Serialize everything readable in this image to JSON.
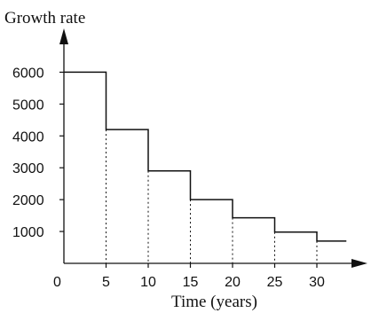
{
  "chart_data": {
    "type": "line",
    "step": true,
    "ylabel": "Growth rate",
    "xlabel": "Time (years)",
    "origin_label": "0",
    "x_ticks": [
      5,
      10,
      15,
      20,
      25,
      30
    ],
    "y_ticks": [
      1000,
      2000,
      3000,
      4000,
      5000,
      6000
    ],
    "x_tick_labels": [
      "5",
      "10",
      "15",
      "20",
      "25",
      "30"
    ],
    "y_tick_labels": [
      "1000",
      "2000",
      "3000",
      "4000",
      "5000",
      "6000"
    ],
    "xlim": [
      0,
      35
    ],
    "ylim": [
      0,
      6000
    ],
    "series": [
      {
        "x": [
          [
            0,
            5
          ],
          [
            5,
            10
          ],
          [
            10,
            15
          ],
          [
            15,
            20
          ],
          [
            20,
            25
          ],
          [
            25,
            30
          ],
          [
            30,
            33.5
          ]
        ],
        "values": [
          6000,
          4200,
          2900,
          2000,
          1430,
          980,
          700
        ]
      }
    ],
    "dotted_drops": true,
    "grid": false,
    "line_color": "#111111"
  }
}
